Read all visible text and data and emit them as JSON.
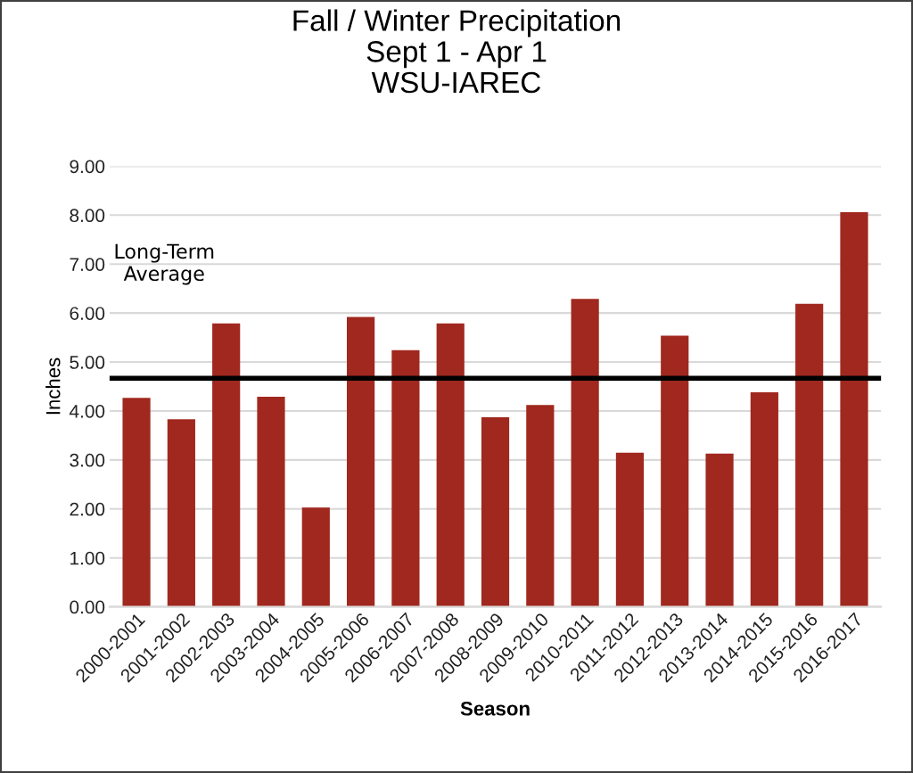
{
  "chart_data": {
    "type": "bar",
    "title": "Fall / Winter Precipitation\nSept 1 - Apr 1\nWSU-IAREC",
    "xlabel": "Season",
    "ylabel": "Inches",
    "categories": [
      "2000-2001",
      "2001-2002",
      "2002-2003",
      "2003-2004",
      "2004-2005",
      "2005-2006",
      "2006-2007",
      "2007-2008",
      "2008-2009",
      "2009-2010",
      "2010-2011",
      "2011-2012",
      "2012-2013",
      "2013-2014",
      "2014-2015",
      "2015-2016",
      "2016-2017"
    ],
    "values": [
      4.27,
      3.83,
      5.79,
      4.29,
      2.03,
      5.92,
      5.24,
      5.79,
      3.87,
      4.12,
      6.29,
      3.15,
      5.54,
      3.13,
      4.38,
      6.19,
      8.06
    ],
    "color": "#a0281e",
    "ylim": [
      0,
      9
    ],
    "yticks": [
      {
        "value": 0,
        "label": "0.00"
      },
      {
        "value": 1,
        "label": "1.00"
      },
      {
        "value": 2,
        "label": "2.00"
      },
      {
        "value": 3,
        "label": "3.00"
      },
      {
        "value": 4,
        "label": "4.00"
      },
      {
        "value": 5,
        "label": "5.00"
      },
      {
        "value": 6,
        "label": "6.00"
      },
      {
        "value": 7,
        "label": "7.00"
      },
      {
        "value": 8,
        "label": "8.00"
      },
      {
        "value": 9,
        "label": "9.00"
      }
    ],
    "grid": "y",
    "ref_lines": [
      {
        "axis": "y",
        "value": 4.67,
        "label": "Long-Term\nAverage",
        "color": "#000000"
      }
    ]
  }
}
